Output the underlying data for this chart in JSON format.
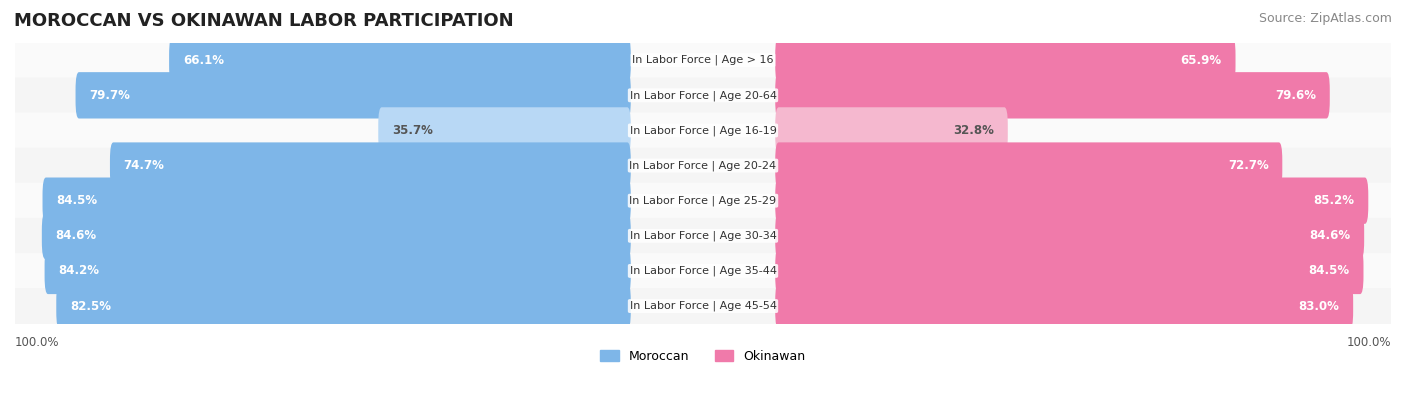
{
  "title": "MOROCCAN VS OKINAWAN LABOR PARTICIPATION",
  "source": "Source: ZipAtlas.com",
  "categories": [
    "In Labor Force | Age > 16",
    "In Labor Force | Age 20-64",
    "In Labor Force | Age 16-19",
    "In Labor Force | Age 20-24",
    "In Labor Force | Age 25-29",
    "In Labor Force | Age 30-34",
    "In Labor Force | Age 35-44",
    "In Labor Force | Age 45-54"
  ],
  "moroccan": [
    66.1,
    79.7,
    35.7,
    74.7,
    84.5,
    84.6,
    84.2,
    82.5
  ],
  "okinawan": [
    65.9,
    79.6,
    32.8,
    72.7,
    85.2,
    84.6,
    84.5,
    83.0
  ],
  "moroccan_color": "#7EB6E8",
  "moroccan_color_light": "#B8D8F5",
  "okinawan_color": "#F07AAA",
  "okinawan_color_light": "#F5B8CF",
  "bar_bg_color": "#F0F0F0",
  "row_bg_colors": [
    "#FAFAFA",
    "#F5F5F5"
  ],
  "max_val": 100.0,
  "legend_moroccan": "Moroccan",
  "legend_okinawan": "Okinawan",
  "title_fontsize": 13,
  "source_fontsize": 9,
  "label_fontsize": 8.5,
  "value_fontsize": 8.5
}
